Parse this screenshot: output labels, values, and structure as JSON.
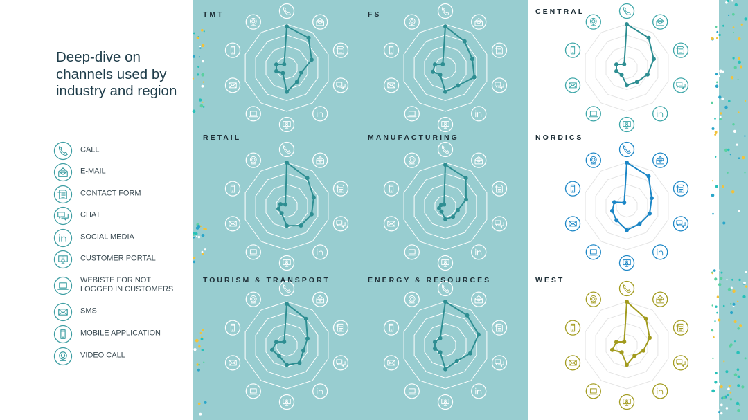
{
  "page": {
    "title": "Deep-dive on channels used by industry and region"
  },
  "legend": [
    {
      "id": "call",
      "label": "CALL",
      "icon": "phone-icon"
    },
    {
      "id": "email",
      "label": "E-MAIL",
      "icon": "email-icon"
    },
    {
      "id": "contact_form",
      "label": "CONTACT FORM",
      "icon": "contact-form-icon"
    },
    {
      "id": "chat",
      "label": "CHAT",
      "icon": "chat-icon"
    },
    {
      "id": "social_media",
      "label": "SOCIAL MEDIA",
      "icon": "linkedin-icon"
    },
    {
      "id": "customer_portal",
      "label": "CUSTOMER PORTAL",
      "icon": "customer-portal-icon"
    },
    {
      "id": "website",
      "label": "WEBISTE FOR NOT\nLOGGED IN CUSTOMERS",
      "icon": "laptop-icon"
    },
    {
      "id": "sms",
      "label": "SMS",
      "icon": "sms-icon"
    },
    {
      "id": "mobile_app",
      "label": "MOBILE APPLICATION",
      "icon": "mobile-icon"
    },
    {
      "id": "video_call",
      "label": "VIDEO CALL",
      "icon": "webcam-icon"
    }
  ],
  "colors": {
    "teal_panel": "#98cdd0",
    "teal_series": "#2e8e92",
    "blue_series": "#1b86c6",
    "olive_series": "#a29b1e",
    "icon_on_teal": "#ffffff",
    "icon_on_white_teal": "#3ca6a8",
    "grid_on_teal": "#ffffff",
    "grid_on_white": "#e4e4e4"
  },
  "chart_data": [
    {
      "type": "radar",
      "title": "TMT",
      "categories": [
        "CALL",
        "E-MAIL",
        "CONTACT FORM",
        "CHAT",
        "SOCIAL MEDIA",
        "CUSTOMER PORTAL",
        "WEBISTE FOR NOT LOGGED IN CUSTOMERS",
        "SMS",
        "MOBILE APPLICATION",
        "VIDEO CALL"
      ],
      "values": [
        95,
        85,
        60,
        35,
        40,
        55,
        15,
        25,
        25,
        10
      ],
      "range": [
        0,
        100
      ],
      "color": "teal",
      "panel": "teal"
    },
    {
      "type": "radar",
      "title": "FS",
      "categories": [
        "CALL",
        "E-MAIL",
        "CONTACT FORM",
        "CHAT",
        "SOCIAL MEDIA",
        "CUSTOMER PORTAL",
        "WEBISTE FOR NOT LOGGED IN CUSTOMERS",
        "SMS",
        "MOBILE APPLICATION",
        "VIDEO CALL"
      ],
      "values": [
        95,
        75,
        65,
        70,
        50,
        55,
        20,
        30,
        25,
        10
      ],
      "range": [
        0,
        100
      ],
      "color": "teal",
      "panel": "teal"
    },
    {
      "type": "radar",
      "title": "CENTRAL",
      "categories": [
        "CALL",
        "E-MAIL",
        "CONTACT FORM",
        "CHAT",
        "SOCIAL MEDIA",
        "CUSTOMER PORTAL",
        "WEBISTE FOR NOT LOGGED IN CUSTOMERS",
        "SMS",
        "MOBILE APPLICATION",
        "VIDEO CALL"
      ],
      "values": [
        100,
        85,
        65,
        50,
        40,
        40,
        20,
        25,
        25,
        10
      ],
      "range": [
        0,
        100
      ],
      "color": "teal",
      "panel": "white"
    },
    {
      "type": "radar",
      "title": "RETAIL",
      "categories": [
        "CALL",
        "E-MAIL",
        "CONTACT FORM",
        "CHAT",
        "SOCIAL MEDIA",
        "CUSTOMER PORTAL",
        "WEBISTE FOR NOT LOGGED IN CUSTOMERS",
        "SMS",
        "MOBILE APPLICATION",
        "VIDEO CALL"
      ],
      "values": [
        100,
        80,
        65,
        60,
        55,
        45,
        20,
        20,
        15,
        5
      ],
      "range": [
        0,
        100
      ],
      "color": "teal",
      "panel": "teal"
    },
    {
      "type": "radar",
      "title": "MANUFACTURING",
      "categories": [
        "CALL",
        "E-MAIL",
        "CONTACT FORM",
        "CHAT",
        "SOCIAL MEDIA",
        "CUSTOMER PORTAL",
        "WEBISTE FOR NOT LOGGED IN CUSTOMERS",
        "SMS",
        "MOBILE APPLICATION",
        "VIDEO CALL"
      ],
      "values": [
        95,
        80,
        50,
        30,
        30,
        30,
        15,
        15,
        10,
        5
      ],
      "range": [
        0,
        100
      ],
      "color": "teal",
      "panel": "teal"
    },
    {
      "type": "radar",
      "title": "NORDICS",
      "categories": [
        "CALL",
        "E-MAIL",
        "CONTACT FORM",
        "CHAT",
        "SOCIAL MEDIA",
        "CUSTOMER PORTAL",
        "WEBISTE FOR NOT LOGGED IN CUSTOMERS",
        "SMS",
        "MOBILE APPLICATION",
        "VIDEO CALL"
      ],
      "values": [
        100,
        85,
        60,
        55,
        50,
        55,
        40,
        35,
        30,
        10
      ],
      "range": [
        0,
        100
      ],
      "color": "blue",
      "panel": "white"
    },
    {
      "type": "radar",
      "title": "TOURISM & TRANSPORT",
      "categories": [
        "CALL",
        "E-MAIL",
        "CONTACT FORM",
        "CHAT",
        "SOCIAL MEDIA",
        "CUSTOMER PORTAL",
        "WEBISTE FOR NOT LOGGED IN CUSTOMERS",
        "SMS",
        "MOBILE APPLICATION",
        "VIDEO CALL"
      ],
      "values": [
        95,
        75,
        50,
        40,
        50,
        45,
        30,
        35,
        25,
        10
      ],
      "range": [
        0,
        100
      ],
      "color": "teal",
      "panel": "teal"
    },
    {
      "type": "radar",
      "title": "ENERGY & RESOURCES",
      "categories": [
        "CALL",
        "E-MAIL",
        "CONTACT FORM",
        "CHAT",
        "SOCIAL MEDIA",
        "CUSTOMER PORTAL",
        "WEBISTE FOR NOT LOGGED IN CUSTOMERS",
        "SMS",
        "MOBILE APPLICATION",
        "VIDEO CALL"
      ],
      "values": [
        100,
        85,
        80,
        60,
        45,
        55,
        20,
        25,
        25,
        20
      ],
      "range": [
        0,
        100
      ],
      "color": "teal",
      "panel": "teal"
    },
    {
      "type": "radar",
      "title": "WEST",
      "categories": [
        "CALL",
        "E-MAIL",
        "CONTACT FORM",
        "CHAT",
        "SOCIAL MEDIA",
        "CUSTOMER PORTAL",
        "WEBISTE FOR NOT LOGGED IN CUSTOMERS",
        "SMS",
        "MOBILE APPLICATION",
        "VIDEO CALL"
      ],
      "values": [
        100,
        75,
        55,
        40,
        30,
        45,
        20,
        35,
        25,
        10
      ],
      "range": [
        0,
        100
      ],
      "color": "olive",
      "panel": "white"
    }
  ]
}
